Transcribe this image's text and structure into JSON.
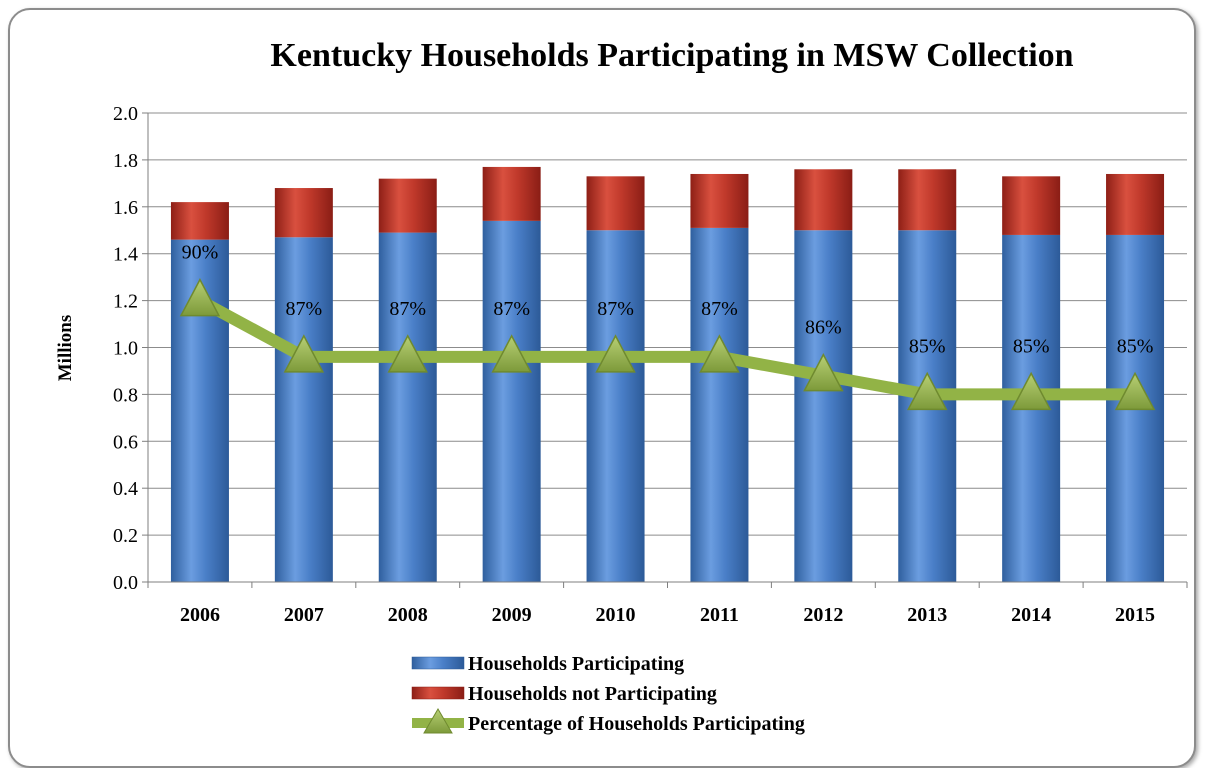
{
  "chart_data": {
    "type": "bar",
    "stacked": true,
    "title": "Kentucky Households Participating in MSW Collection",
    "ylabel": "Millions",
    "xlabel": "",
    "ylim": [
      0,
      2.0
    ],
    "yticks": [
      "0.0",
      "0.2",
      "0.4",
      "0.6",
      "0.8",
      "1.0",
      "1.2",
      "1.4",
      "1.6",
      "1.8",
      "2.0"
    ],
    "grid": true,
    "legend_position": "bottom",
    "categories": [
      "2006",
      "2007",
      "2008",
      "2009",
      "2010",
      "2011",
      "2012",
      "2013",
      "2014",
      "2015"
    ],
    "series": [
      {
        "name": "Households Participating",
        "type": "bar",
        "color": "#4a7fc8",
        "values": [
          1.46,
          1.47,
          1.49,
          1.54,
          1.5,
          1.51,
          1.5,
          1.5,
          1.48,
          1.48
        ]
      },
      {
        "name": "Households not Participating",
        "type": "bar",
        "color": "#c0392b",
        "values": [
          0.16,
          0.21,
          0.23,
          0.23,
          0.23,
          0.23,
          0.26,
          0.26,
          0.25,
          0.26
        ]
      },
      {
        "name": "Percentage of Households Participating",
        "type": "line",
        "marker": "triangle",
        "color": "#92b346",
        "values": [
          90,
          87,
          87,
          87,
          87,
          87,
          86,
          85,
          85,
          85
        ],
        "data_labels": [
          "90%",
          "87%",
          "87%",
          "87%",
          "87%",
          "87%",
          "86%",
          "85%",
          "85%",
          "85%"
        ]
      }
    ]
  }
}
